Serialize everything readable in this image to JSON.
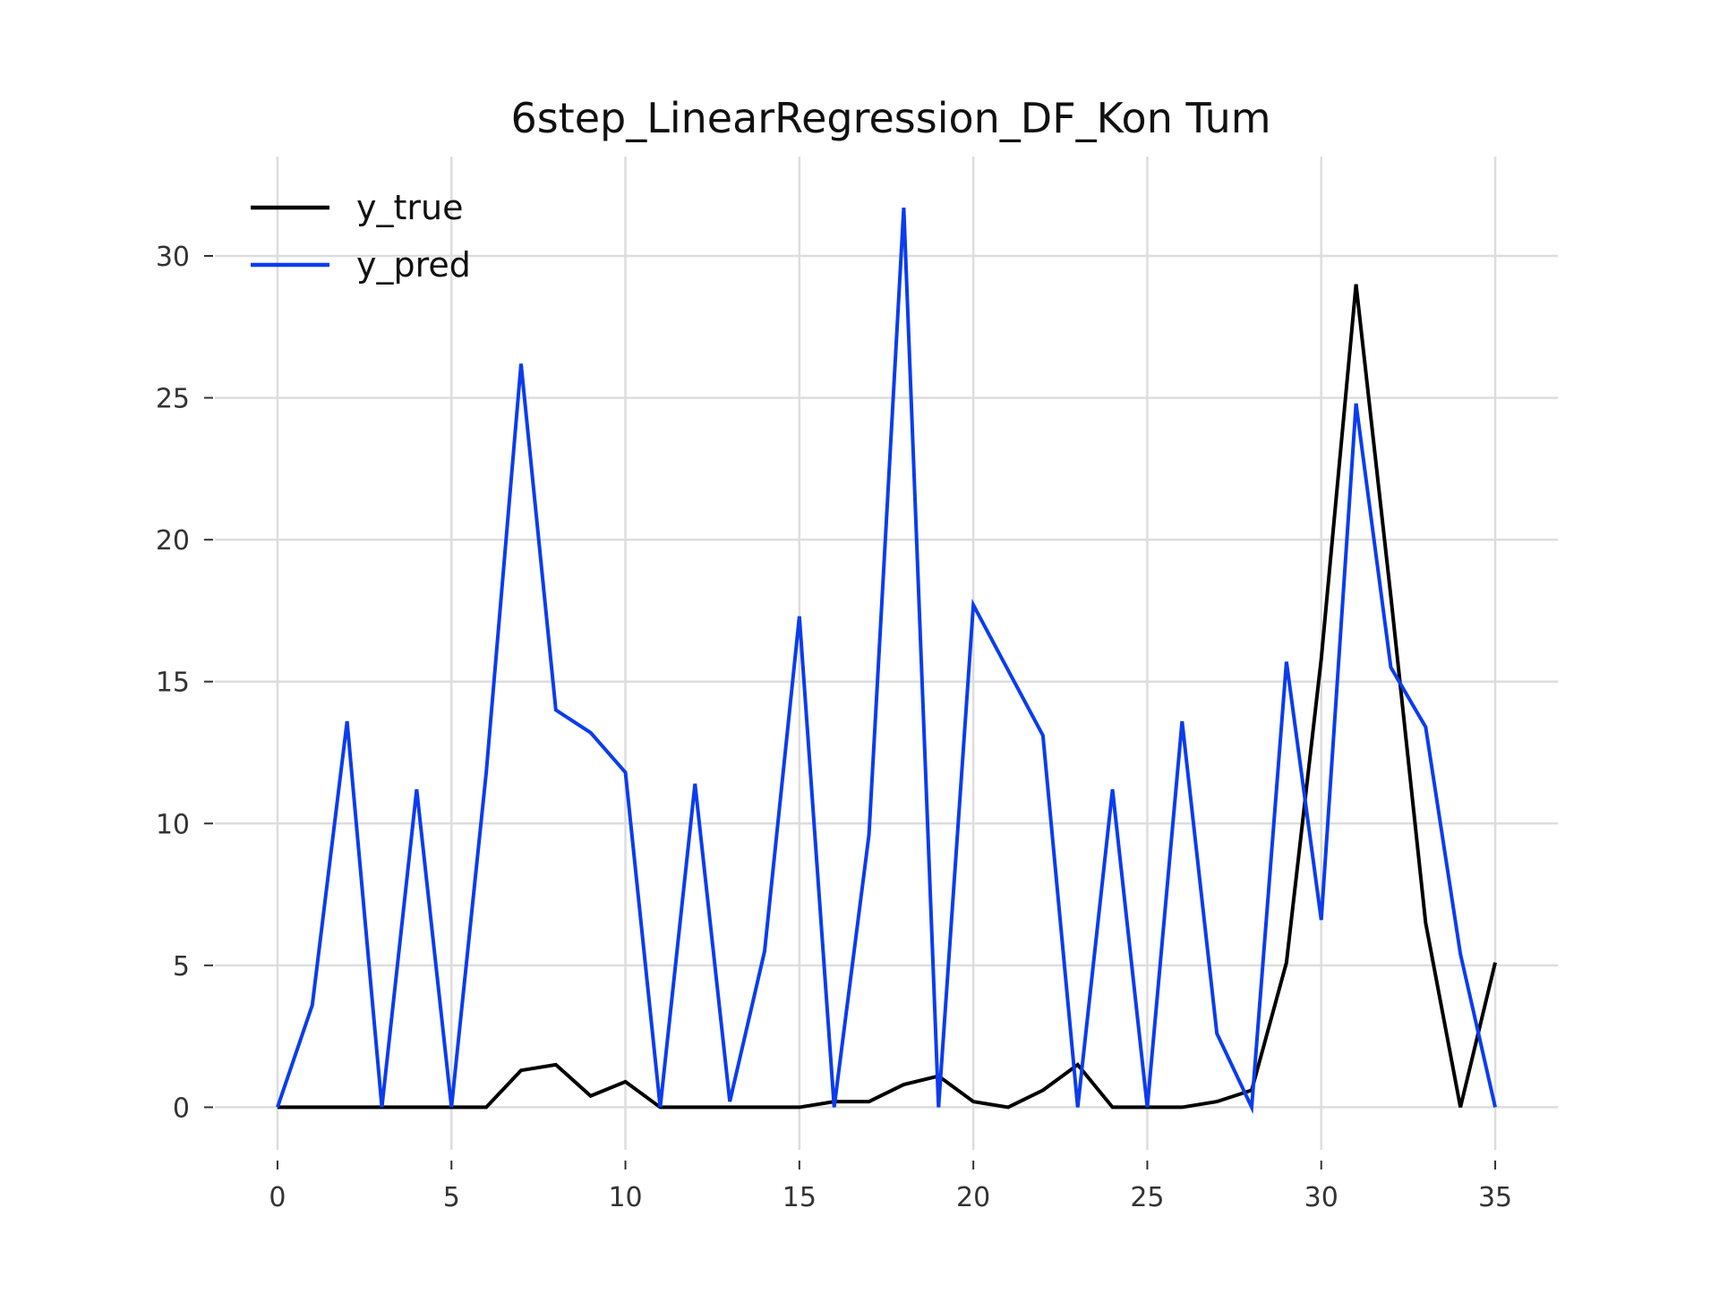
{
  "chart_data": {
    "type": "line",
    "title": "6step_LinearRegression_DF_Kon Tum",
    "xlabel": "",
    "ylabel": "",
    "xlim": [
      -1.8,
      36.8
    ],
    "ylim": [
      -1.5,
      33.5
    ],
    "xticks": [
      0,
      5,
      10,
      15,
      20,
      25,
      30,
      35
    ],
    "yticks": [
      0,
      5,
      10,
      15,
      20,
      25,
      30
    ],
    "grid": true,
    "legend_position": "top-left",
    "x": [
      0,
      1,
      2,
      3,
      4,
      5,
      6,
      7,
      8,
      9,
      10,
      11,
      12,
      13,
      14,
      15,
      16,
      17,
      18,
      19,
      20,
      21,
      22,
      23,
      24,
      25,
      26,
      27,
      28,
      29,
      30,
      31,
      32,
      33,
      34,
      35
    ],
    "series": [
      {
        "name": "y_true",
        "color": "#000000",
        "values": [
          0,
          0,
          0,
          0,
          0,
          0,
          0,
          1.3,
          1.5,
          0.4,
          0.9,
          0,
          0,
          0,
          0,
          0,
          0.2,
          0.2,
          0.8,
          1.1,
          0.2,
          0,
          0.6,
          1.5,
          0,
          0,
          0,
          0.2,
          0.6,
          5.1,
          15.8,
          29,
          18,
          6.5,
          0,
          5.1
        ]
      },
      {
        "name": "y_pred",
        "color": "#0a3cf0",
        "values": [
          0,
          3.6,
          13.6,
          0,
          11.2,
          0,
          11.8,
          26.2,
          14,
          13.2,
          11.8,
          0,
          11.4,
          0.2,
          5.5,
          17.3,
          0,
          9.6,
          31.7,
          0,
          17.7,
          15.4,
          13.1,
          0,
          11.2,
          0,
          13.6,
          2.6,
          0,
          15.7,
          6.6,
          24.8,
          15.5,
          13.4,
          5.4,
          0
        ]
      }
    ]
  }
}
